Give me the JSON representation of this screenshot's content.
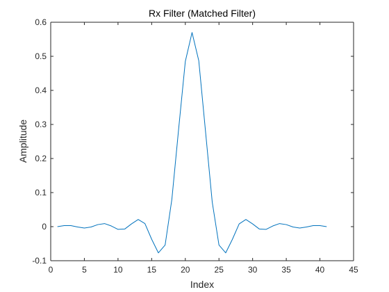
{
  "chart_data": {
    "type": "line",
    "title": "Rx Filter (Matched Filter)",
    "xlabel": "Index",
    "ylabel": "Amplitude",
    "xlim": [
      0,
      45
    ],
    "ylim": [
      -0.1,
      0.6
    ],
    "xticks": [
      0,
      5,
      10,
      15,
      20,
      25,
      30,
      35,
      40,
      45
    ],
    "yticks": [
      -0.1,
      0,
      0.1,
      0.2,
      0.3,
      0.4,
      0.5,
      0.6
    ],
    "xtick_labels": [
      "0",
      "5",
      "10",
      "15",
      "20",
      "25",
      "30",
      "35",
      "40",
      "45"
    ],
    "ytick_labels": [
      "-0.1",
      "0",
      "0.1",
      "0.2",
      "0.3",
      "0.4",
      "0.5",
      "0.6"
    ],
    "grid": false,
    "box": true,
    "series": [
      {
        "color": "#0072BD",
        "x": [
          1,
          2,
          3,
          4,
          5,
          6,
          7,
          8,
          9,
          10,
          11,
          12,
          13,
          14,
          15,
          16,
          17,
          18,
          19,
          20,
          21,
          22,
          23,
          24,
          25,
          26,
          27,
          28,
          29,
          30,
          31,
          32,
          33,
          34,
          35,
          36,
          37,
          38,
          39,
          40,
          41
        ],
        "y": [
          0.0,
          0.003,
          0.003,
          -0.001,
          -0.004,
          -0.001,
          0.006,
          0.009,
          0.002,
          -0.008,
          -0.007,
          0.008,
          0.021,
          0.009,
          -0.037,
          -0.077,
          -0.054,
          0.08,
          0.285,
          0.485,
          0.57,
          0.487,
          0.28,
          0.072,
          -0.054,
          -0.077,
          -0.037,
          0.008,
          0.021,
          0.008,
          -0.007,
          -0.008,
          0.002,
          0.009,
          0.006,
          -0.001,
          -0.004,
          -0.001,
          0.003,
          0.003,
          0.0
        ]
      }
    ]
  },
  "colors": {
    "axis": "#262626",
    "background": "#ffffff"
  }
}
